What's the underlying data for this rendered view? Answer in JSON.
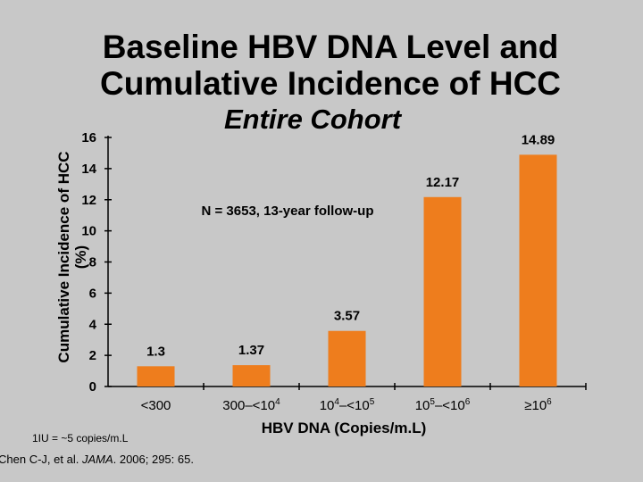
{
  "slide": {
    "title_line1": "Baseline HBV DNA Level and",
    "title_line2": "Cumulative Incidence of HCC",
    "subtitle": "Entire Cohort",
    "footnote": "1IU = ~5 copies/m.L",
    "citation_authors": "Chen C-J, et al. ",
    "citation_journal": "JAMA",
    "citation_rest": ". 2006; 295: 65."
  },
  "chart_data": {
    "type": "bar",
    "title": "Baseline HBV DNA Level and Cumulative Incidence of HCC",
    "subtitle": "Entire Cohort",
    "xlabel": "HBV DNA (Copies/m.L)",
    "ylabel_line1": "Cumulative Incidence of HCC",
    "ylabel_line2": "(%)",
    "annotation": "N = 3653, 13-year follow-up",
    "categories": [
      {
        "base": "<300",
        "sup": ""
      },
      {
        "base": "300–<10",
        "sup": "4"
      },
      {
        "base": "10",
        "sup": "4",
        "tail": "–<10",
        "sup2": "5"
      },
      {
        "base": "10",
        "sup": "5",
        "tail": "–<10",
        "sup2": "6"
      },
      {
        "base": "≥10",
        "sup": "6"
      }
    ],
    "category_labels": [
      "<300",
      "300–<10^4",
      "10^4–<10^5",
      "10^5–<10^6",
      "≥10^6"
    ],
    "values": [
      1.3,
      1.37,
      3.57,
      12.17,
      14.89
    ],
    "value_labels": [
      "1.3",
      "1.37",
      "3.57",
      "12.17",
      "14.89"
    ],
    "ylim": [
      0,
      16
    ],
    "yticks": [
      0,
      2,
      4,
      6,
      8,
      10,
      12,
      14,
      16
    ],
    "grid": false,
    "bar_color": "#ee7d1d",
    "background_color": "#c8c8c8"
  }
}
